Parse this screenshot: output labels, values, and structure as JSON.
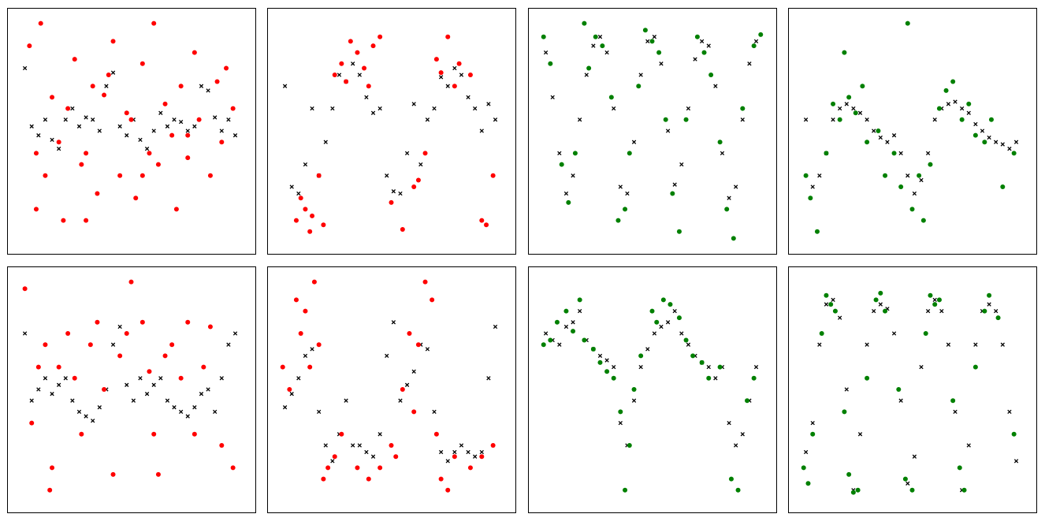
{
  "chart_data": [
    {
      "type": "scatter",
      "xlim": [
        0,
        100
      ],
      "ylim": [
        0,
        100
      ],
      "series": [
        {
          "color": "#000000",
          "marker": "x",
          "x": [
            3,
            6,
            9,
            12,
            15,
            18,
            21,
            24,
            27,
            30,
            33,
            36,
            39,
            42,
            45,
            48,
            51,
            54,
            57,
            60,
            63,
            66,
            69,
            72,
            75,
            78,
            81,
            84,
            87,
            90,
            93,
            96
          ],
          "values": [
            78,
            52,
            48,
            55,
            46,
            42,
            55,
            60,
            52,
            56,
            55,
            50,
            70,
            76,
            52,
            48,
            55,
            46,
            42,
            50,
            58,
            52,
            55,
            54,
            50,
            52,
            70,
            68,
            56,
            50,
            55,
            48
          ]
        },
        {
          "color": "#ff0000",
          "marker": "o",
          "x": [
            5,
            8,
            10,
            12,
            15,
            18,
            20,
            22,
            25,
            28,
            30,
            33,
            35,
            38,
            40,
            42,
            45,
            48,
            50,
            52,
            55,
            58,
            60,
            62,
            65,
            68,
            70,
            72,
            75,
            78,
            80,
            85,
            88,
            90,
            95,
            8,
            30,
            55,
            75,
            92
          ],
          "values": [
            88,
            40,
            98,
            30,
            65,
            45,
            10,
            60,
            82,
            35,
            40,
            70,
            22,
            66,
            75,
            90,
            30,
            58,
            55,
            20,
            80,
            40,
            98,
            35,
            62,
            48,
            15,
            70,
            38,
            85,
            55,
            30,
            72,
            45,
            60,
            15,
            10,
            30,
            48,
            78
          ]
        }
      ]
    },
    {
      "type": "scatter",
      "xlim": [
        0,
        100
      ],
      "ylim": [
        0,
        100
      ],
      "series": [
        {
          "color": "#000000",
          "marker": "x",
          "x": [
            3,
            6,
            9,
            12,
            15,
            18,
            21,
            24,
            27,
            30,
            33,
            36,
            39,
            42,
            45,
            48,
            51,
            54,
            57,
            60,
            63,
            66,
            69,
            72,
            75,
            78,
            81,
            84,
            87,
            90,
            93,
            96
          ],
          "values": [
            70,
            25,
            22,
            35,
            60,
            30,
            45,
            60,
            75,
            72,
            80,
            75,
            65,
            58,
            60,
            30,
            23,
            22,
            40,
            62,
            35,
            55,
            60,
            74,
            70,
            78,
            75,
            65,
            60,
            50,
            62,
            55
          ]
        },
        {
          "color": "#ff0000",
          "marker": "o",
          "x": [
            10,
            14,
            18,
            25,
            28,
            30,
            32,
            35,
            38,
            40,
            42,
            45,
            20,
            8,
            12,
            50,
            55,
            60,
            62,
            70,
            72,
            75,
            78,
            80,
            85,
            90,
            92,
            15,
            65,
            95
          ],
          "values": [
            20,
            5,
            30,
            75,
            80,
            72,
            90,
            85,
            78,
            70,
            88,
            92,
            8,
            10,
            15,
            18,
            6,
            25,
            28,
            82,
            76,
            92,
            70,
            80,
            75,
            10,
            8,
            12,
            40,
            30
          ]
        }
      ]
    },
    {
      "type": "scatter",
      "xlim": [
        0,
        100
      ],
      "ylim": [
        0,
        100
      ],
      "series": [
        {
          "color": "#000000",
          "marker": "x",
          "x": [
            3,
            6,
            9,
            12,
            15,
            18,
            21,
            24,
            27,
            30,
            33,
            36,
            39,
            42,
            45,
            48,
            51,
            54,
            57,
            60,
            63,
            66,
            69,
            72,
            75,
            78,
            81,
            84,
            87,
            90,
            93,
            96
          ],
          "values": [
            85,
            65,
            40,
            22,
            30,
            55,
            75,
            88,
            92,
            85,
            60,
            25,
            22,
            45,
            75,
            90,
            92,
            80,
            50,
            26,
            35,
            60,
            82,
            90,
            88,
            70,
            40,
            20,
            25,
            55,
            80,
            90
          ]
        },
        {
          "color": "#008000",
          "marker": "o",
          "x": [
            2,
            5,
            10,
            13,
            16,
            22,
            25,
            28,
            32,
            35,
            38,
            40,
            44,
            47,
            50,
            53,
            56,
            59,
            62,
            65,
            70,
            73,
            76,
            80,
            83,
            86,
            90,
            95,
            20,
            98
          ],
          "values": [
            92,
            80,
            35,
            18,
            40,
            78,
            92,
            88,
            65,
            10,
            15,
            40,
            70,
            95,
            90,
            85,
            55,
            22,
            5,
            55,
            92,
            85,
            75,
            45,
            15,
            2,
            60,
            88,
            98,
            93
          ]
        }
      ]
    },
    {
      "type": "scatter",
      "xlim": [
        0,
        100
      ],
      "ylim": [
        0,
        100
      ],
      "series": [
        {
          "color": "#000000",
          "marker": "x",
          "x": [
            3,
            6,
            9,
            12,
            15,
            18,
            21,
            24,
            27,
            30,
            33,
            36,
            39,
            42,
            45,
            48,
            51,
            54,
            57,
            60,
            63,
            66,
            69,
            72,
            75,
            78,
            81,
            84,
            87,
            90,
            93,
            96
          ],
          "values": [
            55,
            25,
            30,
            40,
            55,
            60,
            62,
            60,
            58,
            55,
            50,
            47,
            45,
            48,
            40,
            30,
            22,
            28,
            40,
            55,
            60,
            62,
            63,
            60,
            58,
            53,
            50,
            47,
            45,
            44,
            42,
            45
          ]
        },
        {
          "color": "#008000",
          "marker": "o",
          "x": [
            3,
            5,
            8,
            12,
            15,
            18,
            22,
            25,
            28,
            30,
            35,
            38,
            42,
            45,
            50,
            53,
            55,
            58,
            62,
            65,
            68,
            72,
            75,
            78,
            82,
            85,
            90,
            95,
            48,
            20
          ],
          "values": [
            30,
            20,
            5,
            40,
            62,
            55,
            65,
            58,
            70,
            45,
            50,
            30,
            40,
            25,
            15,
            30,
            10,
            35,
            60,
            68,
            72,
            55,
            62,
            48,
            45,
            55,
            25,
            40,
            98,
            85
          ]
        }
      ]
    },
    {
      "type": "scatter",
      "xlim": [
        0,
        100
      ],
      "ylim": [
        0,
        100
      ],
      "series": [
        {
          "color": "#000000",
          "marker": "x",
          "x": [
            3,
            6,
            9,
            12,
            15,
            18,
            21,
            24,
            27,
            30,
            33,
            36,
            39,
            42,
            45,
            48,
            51,
            54,
            57,
            60,
            63,
            66,
            69,
            72,
            75,
            78,
            81,
            84,
            87,
            90,
            93,
            96
          ],
          "values": [
            75,
            45,
            50,
            55,
            48,
            52,
            55,
            45,
            40,
            38,
            36,
            42,
            50,
            70,
            78,
            52,
            45,
            55,
            48,
            52,
            55,
            45,
            42,
            40,
            38,
            42,
            48,
            50,
            40,
            55,
            70,
            75
          ]
        },
        {
          "color": "#ff0000",
          "marker": "o",
          "x": [
            3,
            6,
            9,
            12,
            15,
            18,
            22,
            25,
            28,
            32,
            35,
            38,
            42,
            45,
            48,
            50,
            55,
            58,
            60,
            62,
            65,
            68,
            72,
            75,
            78,
            82,
            85,
            90,
            95,
            14
          ],
          "values": [
            95,
            35,
            60,
            70,
            15,
            60,
            75,
            55,
            30,
            70,
            80,
            50,
            12,
            65,
            75,
            98,
            80,
            58,
            30,
            12,
            65,
            70,
            55,
            80,
            30,
            60,
            78,
            25,
            15,
            5
          ]
        }
      ]
    },
    {
      "type": "scatter",
      "xlim": [
        0,
        100
      ],
      "ylim": [
        0,
        100
      ],
      "series": [
        {
          "color": "#000000",
          "marker": "x",
          "x": [
            3,
            6,
            9,
            12,
            15,
            18,
            21,
            24,
            27,
            30,
            33,
            36,
            39,
            42,
            45,
            48,
            51,
            54,
            57,
            60,
            63,
            66,
            69,
            72,
            75,
            78,
            81,
            84,
            87,
            90,
            93,
            96
          ],
          "values": [
            42,
            48,
            55,
            65,
            68,
            40,
            25,
            18,
            30,
            45,
            25,
            25,
            22,
            20,
            30,
            65,
            80,
            45,
            52,
            58,
            70,
            68,
            40,
            22,
            18,
            22,
            25,
            22,
            20,
            22,
            55,
            78
          ]
        },
        {
          "color": "#ff0000",
          "marker": "o",
          "x": [
            2,
            5,
            8,
            10,
            12,
            14,
            16,
            18,
            20,
            22,
            25,
            28,
            35,
            40,
            45,
            50,
            55,
            58,
            62,
            65,
            68,
            70,
            72,
            75,
            78,
            85,
            90,
            60,
            52,
            95
          ],
          "values": [
            60,
            50,
            90,
            75,
            85,
            60,
            98,
            70,
            10,
            15,
            20,
            30,
            15,
            10,
            15,
            25,
            50,
            75,
            70,
            98,
            90,
            30,
            10,
            5,
            20,
            15,
            20,
            40,
            20,
            25
          ]
        }
      ]
    },
    {
      "type": "scatter",
      "xlim": [
        0,
        100
      ],
      "ylim": [
        0,
        100
      ],
      "series": [
        {
          "color": "#000000",
          "marker": "x",
          "x": [
            3,
            6,
            9,
            12,
            15,
            18,
            21,
            24,
            27,
            30,
            33,
            36,
            39,
            42,
            45,
            48,
            51,
            54,
            57,
            60,
            63,
            66,
            69,
            72,
            75,
            78,
            81,
            84,
            87,
            90,
            93,
            96
          ],
          "values": [
            75,
            72,
            70,
            78,
            80,
            85,
            72,
            68,
            65,
            63,
            60,
            35,
            25,
            45,
            60,
            68,
            75,
            78,
            80,
            85,
            75,
            70,
            65,
            62,
            60,
            55,
            60,
            35,
            25,
            30,
            45,
            60
          ]
        },
        {
          "color": "#008000",
          "marker": "o",
          "x": [
            2,
            5,
            8,
            12,
            15,
            18,
            20,
            24,
            27,
            30,
            33,
            36,
            38,
            42,
            45,
            50,
            52,
            55,
            58,
            62,
            65,
            68,
            72,
            75,
            80,
            85,
            88,
            92,
            40,
            95
          ],
          "values": [
            70,
            72,
            80,
            85,
            76,
            90,
            72,
            68,
            62,
            58,
            55,
            40,
            5,
            50,
            65,
            85,
            80,
            90,
            88,
            82,
            72,
            65,
            62,
            55,
            60,
            10,
            5,
            45,
            25,
            55
          ]
        }
      ]
    },
    {
      "type": "scatter",
      "xlim": [
        0,
        100
      ],
      "ylim": [
        0,
        100
      ],
      "series": [
        {
          "color": "#000000",
          "marker": "x",
          "x": [
            3,
            6,
            9,
            12,
            15,
            18,
            21,
            24,
            27,
            30,
            33,
            36,
            39,
            42,
            45,
            48,
            51,
            54,
            57,
            60,
            63,
            66,
            69,
            72,
            75,
            78,
            81,
            84,
            87,
            90,
            93,
            96
          ],
          "values": [
            22,
            35,
            70,
            88,
            90,
            82,
            50,
            5,
            30,
            70,
            85,
            88,
            86,
            75,
            45,
            8,
            20,
            60,
            85,
            90,
            85,
            70,
            40,
            5,
            25,
            70,
            85,
            88,
            85,
            70,
            40,
            18
          ]
        },
        {
          "color": "#008000",
          "marker": "o",
          "x": [
            2,
            4,
            6,
            10,
            12,
            14,
            16,
            20,
            22,
            24,
            26,
            30,
            34,
            36,
            38,
            44,
            47,
            50,
            56,
            58,
            60,
            62,
            68,
            71,
            73,
            78,
            82,
            84,
            88,
            95
          ],
          "values": [
            15,
            8,
            30,
            75,
            92,
            88,
            85,
            40,
            12,
            4,
            5,
            55,
            90,
            93,
            85,
            50,
            10,
            5,
            75,
            92,
            88,
            90,
            45,
            15,
            5,
            60,
            85,
            92,
            82,
            30
          ]
        }
      ]
    }
  ]
}
